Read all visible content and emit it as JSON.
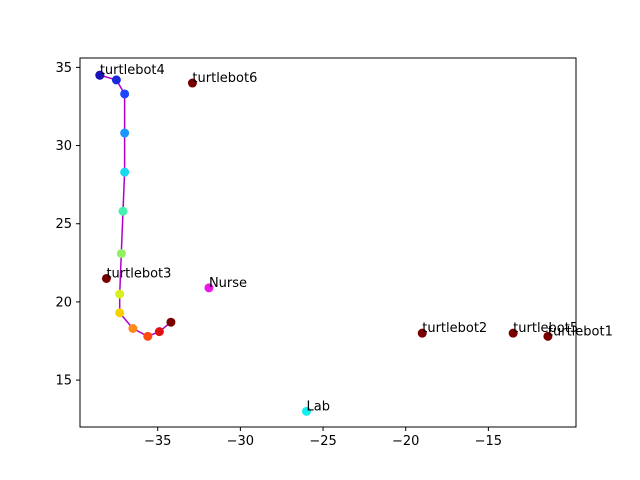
{
  "chart_data": {
    "type": "scatter",
    "title": "",
    "xlabel": "",
    "ylabel": "",
    "xlim": [
      -39.7,
      -9.7
    ],
    "ylim": [
      12.0,
      35.6
    ],
    "grid": false,
    "x_ticks": [
      -35,
      -30,
      -25,
      -20,
      -15
    ],
    "y_ticks": [
      15,
      20,
      25,
      30,
      35
    ],
    "x_tick_labels": [
      "−35",
      "−30",
      "−25",
      "−20",
      "−15"
    ],
    "y_tick_labels": [
      "15",
      "20",
      "25",
      "30",
      "35"
    ],
    "path": {
      "color": "#b000c8",
      "points": [
        {
          "x": -38.5,
          "y": 34.5,
          "color": "#1a12b5"
        },
        {
          "x": -37.5,
          "y": 34.2,
          "color": "#1a2ad8"
        },
        {
          "x": -37.0,
          "y": 33.3,
          "color": "#1a46ff"
        },
        {
          "x": -37.0,
          "y": 30.8,
          "color": "#1a96ff"
        },
        {
          "x": -37.0,
          "y": 28.3,
          "color": "#1ad8f0"
        },
        {
          "x": -37.1,
          "y": 25.8,
          "color": "#48f0b0"
        },
        {
          "x": -37.2,
          "y": 23.1,
          "color": "#90f060"
        },
        {
          "x": -37.3,
          "y": 20.5,
          "color": "#d8f020"
        },
        {
          "x": -37.3,
          "y": 19.3,
          "color": "#f8d000"
        },
        {
          "x": -36.5,
          "y": 18.3,
          "color": "#ff8a1a"
        },
        {
          "x": -35.6,
          "y": 17.8,
          "color": "#ff4a10"
        },
        {
          "x": -34.9,
          "y": 18.1,
          "color": "#e01010"
        },
        {
          "x": -34.2,
          "y": 18.7,
          "color": "#7a0000"
        }
      ]
    },
    "labeled_points": [
      {
        "name": "turtlebot4",
        "x": -38.5,
        "y": 34.5,
        "color": "#1a12b5"
      },
      {
        "name": "turtlebot6",
        "x": -32.9,
        "y": 34.0,
        "color": "#7a0000"
      },
      {
        "name": "turtlebot3",
        "x": -38.1,
        "y": 21.5,
        "color": "#7a0000"
      },
      {
        "name": "Nurse",
        "x": -31.9,
        "y": 20.9,
        "color": "#e818e8"
      },
      {
        "name": "turtlebot2",
        "x": -19.0,
        "y": 18.0,
        "color": "#7a0000"
      },
      {
        "name": "turtlebot5",
        "x": -13.5,
        "y": 18.0,
        "color": "#7a0000"
      },
      {
        "name": "turtlebot1",
        "x": -11.4,
        "y": 17.8,
        "color": "#7a0000"
      },
      {
        "name": "Lab",
        "x": -26.0,
        "y": 13.0,
        "color": "#10f0f0"
      }
    ]
  }
}
